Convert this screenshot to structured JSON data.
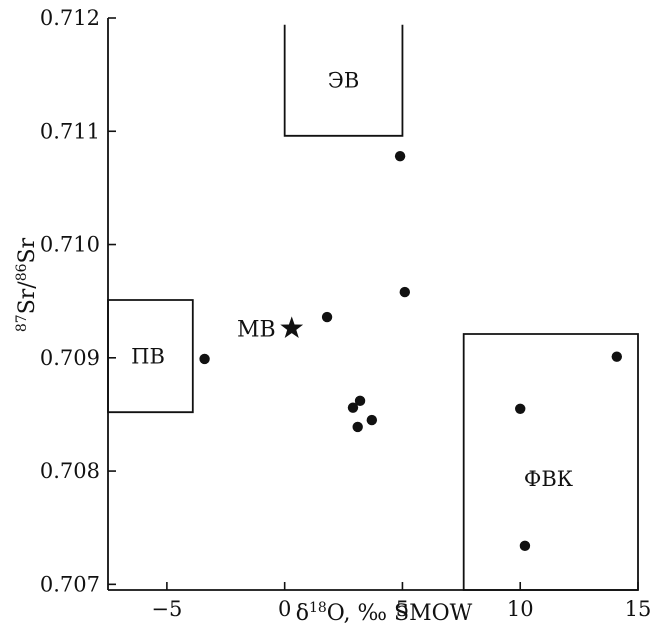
{
  "chart_data": {
    "type": "scatter",
    "title": "",
    "xlabel": "δ18O, ‰ SMOW",
    "ylabel": "87Sr/86Sr",
    "xlim": [
      -7.5,
      15
    ],
    "ylim": [
      0.70695,
      0.712
    ],
    "x_ticks": [
      {
        "value": -5,
        "label": "−5"
      },
      {
        "value": 0,
        "label": "0"
      },
      {
        "value": 5,
        "label": "5"
      },
      {
        "value": 10,
        "label": "10"
      },
      {
        "value": 15,
        "label": "15"
      }
    ],
    "y_ticks": [
      {
        "value": 0.707,
        "label": "0.707"
      },
      {
        "value": 0.708,
        "label": "0.708"
      },
      {
        "value": 0.709,
        "label": "0.709"
      },
      {
        "value": 0.71,
        "label": "0.710"
      },
      {
        "value": 0.711,
        "label": "0.711"
      },
      {
        "value": 0.712,
        "label": "0.712"
      }
    ],
    "grid": false,
    "points": [
      {
        "x": -3.4,
        "y": 0.70899
      },
      {
        "x": 1.8,
        "y": 0.70936
      },
      {
        "x": 2.9,
        "y": 0.70856
      },
      {
        "x": 3.2,
        "y": 0.70862
      },
      {
        "x": 3.1,
        "y": 0.70839
      },
      {
        "x": 3.7,
        "y": 0.70845
      },
      {
        "x": 4.9,
        "y": 0.71078
      },
      {
        "x": 5.1,
        "y": 0.70958
      },
      {
        "x": 10.0,
        "y": 0.70855
      },
      {
        "x": 10.2,
        "y": 0.70734
      },
      {
        "x": 14.1,
        "y": 0.70901
      }
    ],
    "star": {
      "x": 0.3,
      "y": 0.70926,
      "label": "МВ"
    },
    "regions": [
      {
        "label": "ЭВ",
        "x0": 0.0,
        "x1": 5.0,
        "y0": 0.71096,
        "y1": 0.71194,
        "open_top": true,
        "label_x": 2.5,
        "label_y": 0.71145
      },
      {
        "label": "ПВ",
        "x0": -7.5,
        "x1": -3.9,
        "y0": 0.70852,
        "y1": 0.70951,
        "open_top": false,
        "label_x": -5.8,
        "label_y": 0.70901
      },
      {
        "label": "ФВК",
        "x0": 7.6,
        "x1": 15.0,
        "y0": 0.70695,
        "y1": 0.70921,
        "open_top": false,
        "label_x": 11.2,
        "label_y": 0.70793
      }
    ]
  }
}
